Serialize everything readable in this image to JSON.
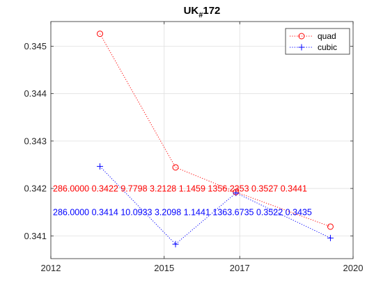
{
  "chart_data": {
    "type": "line",
    "title_main": "UK",
    "title_sub": "#",
    "title_suffix": "172",
    "xlabel": "",
    "ylabel": "",
    "xlim": [
      2012,
      2020
    ],
    "ylim": [
      0.34052,
      0.34552
    ],
    "xticks": [
      2012,
      2015,
      2017,
      2020
    ],
    "xtick_labels": [
      "2012",
      "2015",
      "2017",
      "2020"
    ],
    "yticks": [
      0.341,
      0.342,
      0.343,
      0.344,
      0.345
    ],
    "ytick_labels": [
      "0.341",
      "0.342",
      "0.343",
      "0.344",
      "0.345"
    ],
    "grid": true,
    "legend_position": "top-right",
    "series": [
      {
        "name": "quad",
        "color": "#ff0000",
        "marker": "circle",
        "line_style": "dotted",
        "x": [
          2013.3,
          2015.3,
          2016.9,
          2019.4
        ],
        "y": [
          0.345262,
          0.342445,
          0.341925,
          0.341195
        ]
      },
      {
        "name": "cubic",
        "color": "#0000ff",
        "marker": "plus",
        "line_style": "dotted",
        "x": [
          2013.3,
          2015.3,
          2016.9,
          2019.4
        ],
        "y": [
          0.342465,
          0.340825,
          0.341905,
          0.340955
        ]
      }
    ],
    "annotations": [
      {
        "color": "#ff0000",
        "y": 0.342,
        "text": "286.0000  0.3422  9.7798  3.2128  1.1459  1356.2353  0.3527  0.3441"
      },
      {
        "color": "#0000ff",
        "y": 0.3415,
        "text": "286.0000  0.3414  10.0933  3.2098  1.1441  1363.6735  0.3522  0.3435"
      }
    ]
  }
}
